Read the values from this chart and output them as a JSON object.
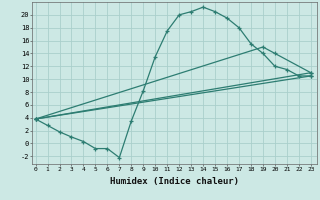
{
  "xlabel": "Humidex (Indice chaleur)",
  "background_color": "#cce8e4",
  "grid_color": "#aacfcc",
  "line_color": "#2d7d72",
  "x_ticks": [
    0,
    1,
    2,
    3,
    4,
    5,
    6,
    7,
    8,
    9,
    10,
    11,
    12,
    13,
    14,
    15,
    16,
    17,
    18,
    19,
    20,
    21,
    22,
    23
  ],
  "y_ticks": [
    -2,
    0,
    2,
    4,
    6,
    8,
    10,
    12,
    14,
    16,
    18,
    20
  ],
  "xlim": [
    -0.3,
    23.5
  ],
  "ylim": [
    -3.2,
    22.0
  ],
  "line1_x": [
    0,
    1,
    2,
    3,
    4,
    5,
    6,
    7,
    8,
    9,
    10,
    11,
    12,
    13,
    14,
    15,
    16,
    17,
    18,
    19,
    20,
    21,
    22,
    23
  ],
  "line1_y": [
    3.8,
    2.8,
    1.8,
    1.0,
    0.3,
    -0.8,
    -0.8,
    -2.2,
    3.5,
    8.2,
    13.5,
    17.5,
    20.0,
    20.5,
    21.2,
    20.5,
    19.5,
    18.0,
    15.5,
    14.0,
    12.0,
    11.5,
    10.5,
    10.5
  ],
  "line2_x": [
    0,
    23
  ],
  "line2_y": [
    3.8,
    11.0
  ],
  "line3_x": [
    0,
    19,
    20,
    23
  ],
  "line3_y": [
    3.8,
    15.0,
    14.0,
    11.0
  ],
  "line4_x": [
    0,
    23
  ],
  "line4_y": [
    3.8,
    10.5
  ]
}
